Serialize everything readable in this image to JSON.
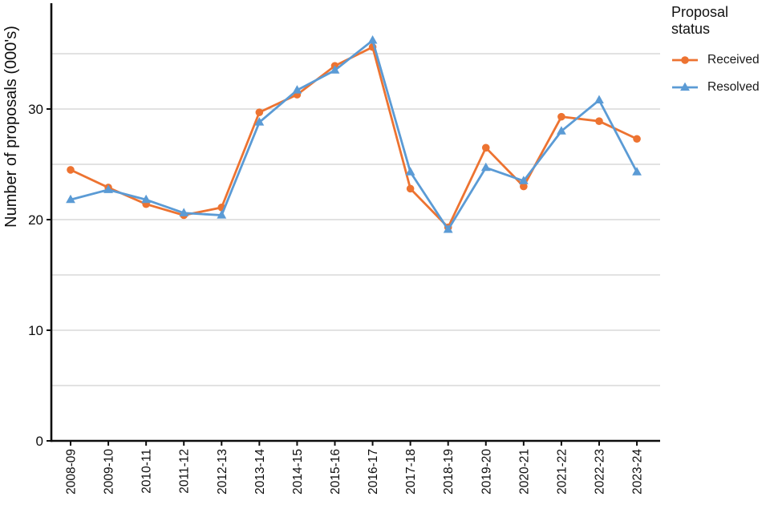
{
  "legend": {
    "title": "Proposal status"
  },
  "chart_data": {
    "type": "line",
    "title": "",
    "xlabel": "",
    "ylabel": "Number of proposals (000's)",
    "categories": [
      "2008-09",
      "2009-10",
      "2010-11",
      "2011-12",
      "2012-13",
      "2013-14",
      "2014-15",
      "2015-16",
      "2016-17",
      "2017-18",
      "2018-19",
      "2019-20",
      "2020-21",
      "2021-22",
      "2022-23",
      "2023-24"
    ],
    "series": [
      {
        "name": "Received",
        "marker": "circle",
        "color": "#ED7331",
        "values": [
          24.5,
          22.9,
          21.4,
          20.4,
          21.1,
          29.7,
          31.3,
          33.9,
          35.6,
          22.8,
          19.3,
          26.5,
          23.0,
          29.3,
          28.9,
          27.3
        ]
      },
      {
        "name": "Resolved",
        "marker": "triangle",
        "color": "#5B9BD5",
        "values": [
          21.8,
          22.7,
          21.8,
          20.6,
          20.4,
          28.8,
          31.7,
          33.5,
          36.2,
          24.3,
          19.1,
          24.7,
          23.5,
          28.0,
          30.8,
          24.3
        ]
      }
    ],
    "ylim": [
      0,
      39.5
    ],
    "yticks": [
      0,
      10,
      20,
      30
    ],
    "gridlines": [
      5,
      10,
      15,
      20,
      25,
      30,
      35
    ],
    "grid_on": true,
    "legend_position": "right",
    "colors": {
      "grid": "#D9D9D9",
      "axis": "#0D0D0D",
      "tick_label": "#0D0D0D"
    }
  }
}
